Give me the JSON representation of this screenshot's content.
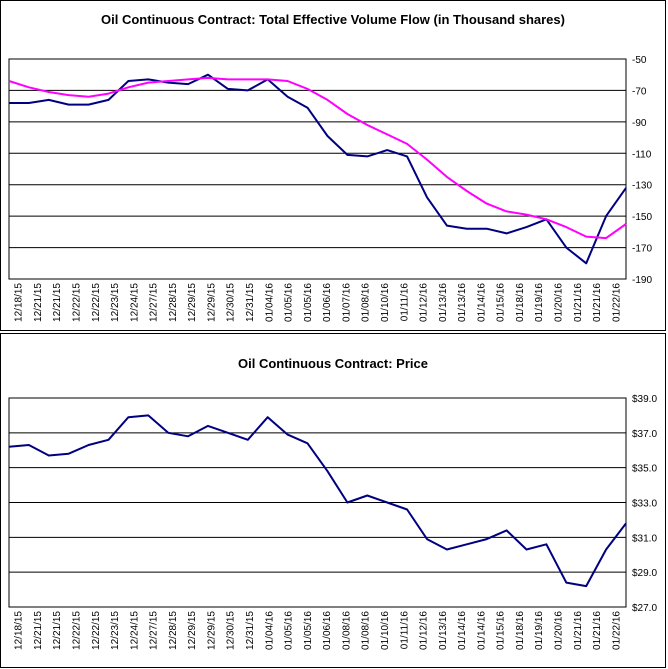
{
  "chart_data": [
    {
      "type": "line",
      "title": "Oil Continuous Contract: Total Effective Volume Flow (in Thousand shares)",
      "xlabel": "",
      "ylabel": "",
      "ylim": [
        -190,
        -50
      ],
      "yticks": [
        -50,
        -70,
        -90,
        -110,
        -130,
        -150,
        -170,
        -190
      ],
      "ytick_labels": [
        "-50",
        "-70",
        "-90",
        "-110",
        "-130",
        "-150",
        "-170",
        "-190"
      ],
      "y_axis_side": "right",
      "grid": "horizontal",
      "categories": [
        "12/18/15",
        "12/21/15",
        "12/21/15",
        "12/22/15",
        "12/22/15",
        "12/23/15",
        "12/24/15",
        "12/27/15",
        "12/28/15",
        "12/29/15",
        "12/29/15",
        "12/30/15",
        "12/31/15",
        "01/04/16",
        "01/05/16",
        "01/05/16",
        "01/06/16",
        "01/07/16",
        "01/08/16",
        "01/10/16",
        "01/11/16",
        "01/12/16",
        "01/13/16",
        "01/13/16",
        "01/14/16",
        "01/15/16",
        "01/18/16",
        "01/19/16",
        "01/20/16",
        "01/21/16",
        "01/21/16",
        "01/22/16"
      ],
      "series": [
        {
          "color": "#000080",
          "values": [
            -78,
            -78,
            -76,
            -79,
            -79,
            -76,
            -64,
            -63,
            -65,
            -66,
            -60,
            -69,
            -70,
            -63,
            -74,
            -81,
            -99,
            -111,
            -112,
            -108,
            -112,
            -138,
            -156,
            -158,
            -158,
            -161,
            -157,
            -152,
            -170,
            -180,
            -150,
            -132
          ]
        },
        {
          "color": "#ff00ff",
          "values": [
            -64,
            -68,
            -71,
            -73,
            -74,
            -72,
            -68,
            -65,
            -64,
            -63,
            -62,
            -63,
            -63,
            -63,
            -64,
            -69,
            -76,
            -85,
            -92,
            -98,
            -104,
            -114,
            -125,
            -134,
            -142,
            -147,
            -149,
            -152,
            -157,
            -163,
            -164,
            -155
          ]
        }
      ]
    },
    {
      "type": "line",
      "title": "Oil Continuous Contract: Price",
      "xlabel": "",
      "ylabel": "",
      "ylim": [
        27,
        39
      ],
      "yticks": [
        27,
        29,
        31,
        33,
        35,
        37,
        39
      ],
      "ytick_labels": [
        "$27.0",
        "$29.0",
        "$31.0",
        "$33.0",
        "$35.0",
        "$37.0",
        "$39.0"
      ],
      "y_axis_side": "right",
      "grid": "horizontal",
      "categories": [
        "12/18/15",
        "12/21/15",
        "12/21/15",
        "12/22/15",
        "12/22/15",
        "12/23/15",
        "12/24/15",
        "12/27/15",
        "12/28/15",
        "12/29/15",
        "12/29/15",
        "12/30/15",
        "12/31/15",
        "01/04/16",
        "01/05/16",
        "01/05/16",
        "01/06/16",
        "01/08/16",
        "01/08/16",
        "01/10/16",
        "01/11/16",
        "01/12/16",
        "01/13/16",
        "01/14/16",
        "01/14/16",
        "01/15/16",
        "01/18/16",
        "01/19/16",
        "01/20/16",
        "01/21/16",
        "01/21/16",
        "01/22/16"
      ],
      "series": [
        {
          "color": "#000080",
          "values": [
            36.2,
            36.3,
            35.7,
            35.8,
            36.3,
            36.6,
            37.9,
            38.0,
            37.0,
            36.8,
            37.4,
            37.0,
            36.6,
            37.9,
            36.9,
            36.4,
            34.8,
            33.0,
            33.4,
            33.0,
            32.6,
            30.9,
            30.3,
            30.6,
            30.9,
            31.4,
            30.3,
            30.6,
            28.4,
            28.2,
            30.3,
            31.8
          ]
        }
      ]
    }
  ]
}
